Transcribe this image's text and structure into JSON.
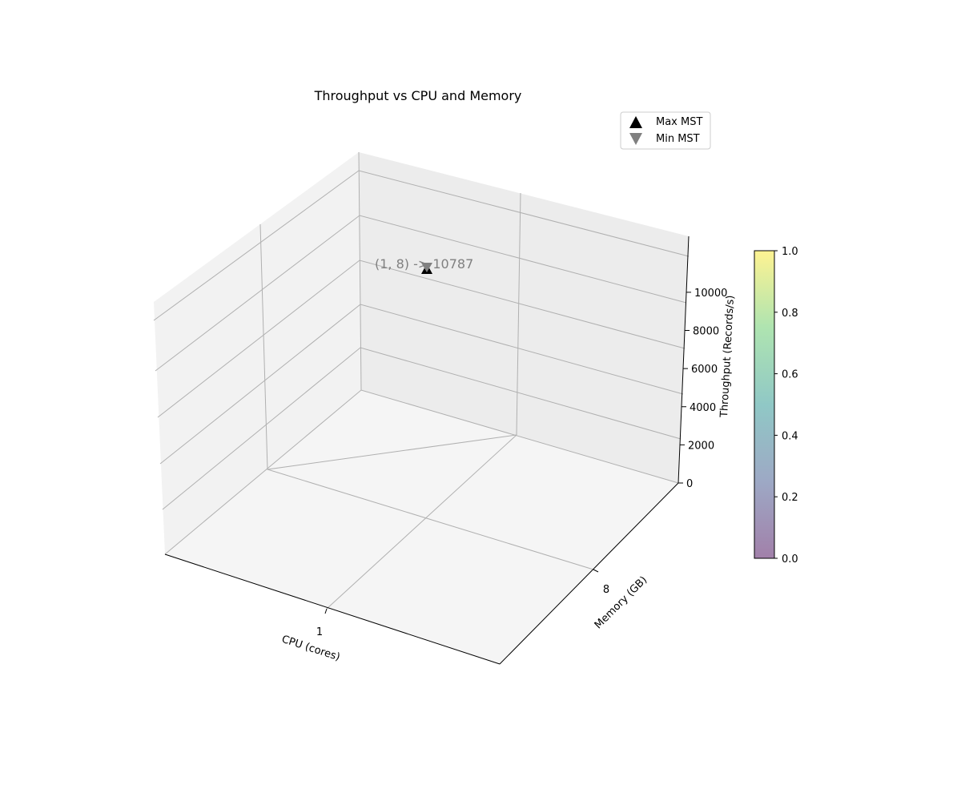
{
  "chart_data": {
    "type": "scatter",
    "title": "Throughput vs CPU and Memory",
    "xlabel": "CPU (cores)",
    "ylabel": "Memory (GB)",
    "zlabel": "Throughput (Records/s)",
    "x_ticks": [
      "1"
    ],
    "y_ticks": [
      "8"
    ],
    "z_ticks": [
      "0",
      "2000",
      "4000",
      "6000",
      "8000",
      "10000"
    ],
    "zlim": [
      0,
      10787
    ],
    "grid": true,
    "legend": {
      "placement": "top-right",
      "entries": [
        {
          "label": "Max MST",
          "marker": "triangle-up",
          "color": "#000000"
        },
        {
          "label": "Min MST",
          "marker": "triangle-down",
          "color": "#808080"
        }
      ]
    },
    "points": [
      {
        "series": "Max MST",
        "x": 1,
        "y": 8,
        "z": 10787
      },
      {
        "series": "Min MST",
        "x": 1,
        "y": 8,
        "z": 10787
      }
    ],
    "annotation": "(1, 8) -> 10787",
    "colorbar": {
      "colormap": "viridis",
      "ticks": [
        "0.0",
        "0.2",
        "0.4",
        "0.6",
        "0.8",
        "1.0"
      ],
      "range": [
        0,
        1
      ]
    }
  }
}
